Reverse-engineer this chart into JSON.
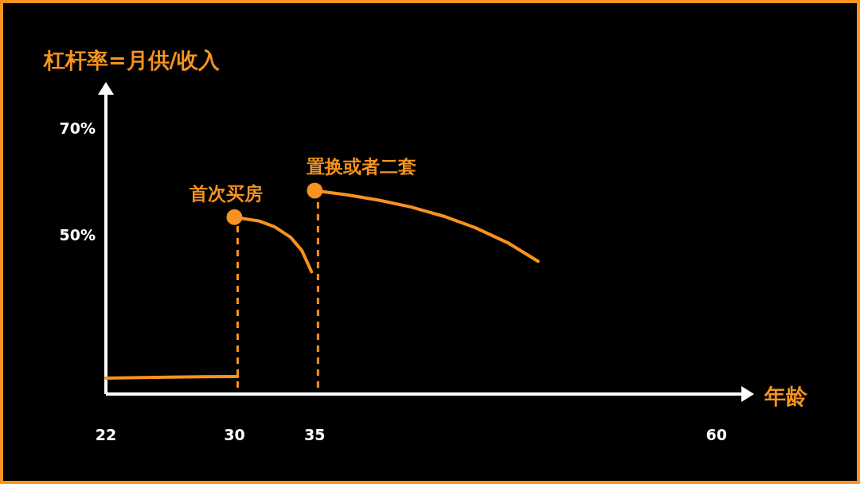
{
  "chart_data": {
    "type": "line",
    "ylabel": "杠杆率=月供/收入",
    "xlabel": "年龄",
    "xlim": [
      22,
      61.6
    ],
    "ylim": [
      20,
      76.5
    ],
    "xticks": [
      22,
      30,
      35,
      60
    ],
    "yticks": [
      {
        "value": 50,
        "label": "50%"
      },
      {
        "value": 70,
        "label": "70%"
      }
    ],
    "grid": false,
    "series": [
      {
        "color": "#f7931e",
        "x": [
          22,
          26,
          30.2
        ],
        "values": [
          23,
          23.2,
          23.3
        ]
      },
      {
        "color": "#f7931e",
        "x": [
          30.2,
          31.5,
          32.5,
          33.5,
          34.2,
          34.8
        ],
        "values": [
          53.2,
          52.6,
          51.5,
          49.5,
          47,
          43
        ]
      },
      {
        "color": "#f7931e",
        "x": [
          35.2,
          37,
          39,
          41,
          43,
          45,
          47,
          48.9
        ],
        "values": [
          58.2,
          57.5,
          56.5,
          55.2,
          53.5,
          51.3,
          48.5,
          45
        ]
      },
      {
        "type": "scatter",
        "color": "#f7931e",
        "x": [
          30,
          35
        ],
        "values": [
          53.3,
          58.3
        ]
      }
    ],
    "ref_lines": [
      {
        "axis": "x",
        "value": 30.2,
        "color": "#f7931e",
        "line_style": "dashed"
      },
      {
        "axis": "x",
        "value": 35.2,
        "color": "#f7931e",
        "line_style": "dashed"
      }
    ],
    "annotations": [
      {
        "text": "首次买房",
        "x": 30,
        "y": 53.3
      },
      {
        "text": "置换或者二套",
        "x": 35,
        "y": 58.3
      }
    ]
  }
}
